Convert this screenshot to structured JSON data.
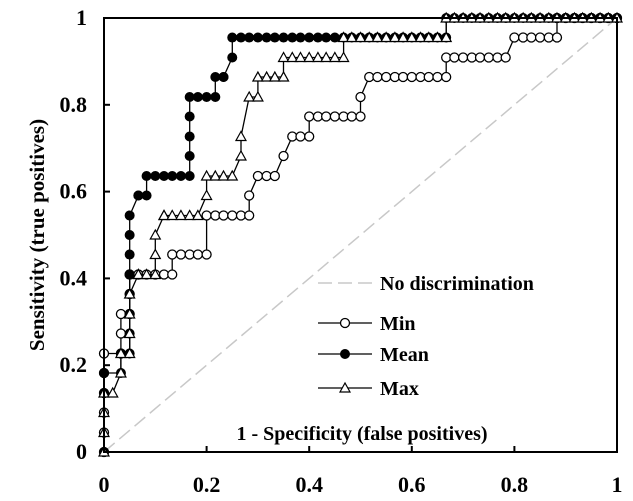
{
  "chart_data": {
    "type": "line",
    "title": "",
    "xlabel": "1 - Specificity (false positives)",
    "ylabel": "Sensitivity (true positives)",
    "xlim": [
      0,
      1
    ],
    "ylim": [
      0,
      1
    ],
    "x_ticks": [
      "0",
      "0.2",
      "0.4",
      "0.6",
      "0.8",
      "1"
    ],
    "y_ticks": [
      "0",
      "0.2",
      "0.4",
      "0.6",
      "0.8",
      "1"
    ],
    "grid": false,
    "legend_position": "bottom-right",
    "reference_line": {
      "name": "No discrimination",
      "x": [
        0,
        1
      ],
      "y": [
        0,
        1
      ],
      "color": "#c8c8c8",
      "dash": "dashed"
    },
    "series": [
      {
        "name": "Min",
        "marker": "circle-open",
        "color": "#000000",
        "x": [
          0,
          0,
          0,
          0,
          0,
          0,
          0.033,
          0.033,
          0.033,
          0.05,
          0.05,
          0.05,
          0.05,
          0.067,
          0.067,
          0.083,
          0.1,
          0.117,
          0.133,
          0.133,
          0.15,
          0.167,
          0.183,
          0.2,
          0.2,
          0.217,
          0.233,
          0.25,
          0.267,
          0.283,
          0.283,
          0.3,
          0.317,
          0.333,
          0.35,
          0.367,
          0.383,
          0.4,
          0.4,
          0.417,
          0.433,
          0.45,
          0.467,
          0.483,
          0.5,
          0.5,
          0.517,
          0.533,
          0.55,
          0.567,
          0.583,
          0.6,
          0.617,
          0.633,
          0.65,
          0.667,
          0.667,
          0.683,
          0.7,
          0.717,
          0.733,
          0.75,
          0.767,
          0.783,
          0.8,
          0.817,
          0.833,
          0.85,
          0.867,
          0.883,
          0.883,
          0.9,
          0.917,
          0.933,
          0.95,
          0.967,
          0.983,
          1
        ],
        "y": [
          0,
          0.045,
          0.091,
          0.136,
          0.182,
          0.227,
          0.227,
          0.273,
          0.318,
          0.318,
          0.364,
          0.409,
          0.409,
          0.409,
          0.409,
          0.409,
          0.409,
          0.409,
          0.409,
          0.455,
          0.455,
          0.455,
          0.455,
          0.455,
          0.545,
          0.545,
          0.545,
          0.545,
          0.545,
          0.545,
          0.591,
          0.636,
          0.636,
          0.636,
          0.682,
          0.727,
          0.727,
          0.727,
          0.773,
          0.773,
          0.773,
          0.773,
          0.773,
          0.773,
          0.773,
          0.818,
          0.864,
          0.864,
          0.864,
          0.864,
          0.864,
          0.864,
          0.864,
          0.864,
          0.864,
          0.864,
          0.909,
          0.909,
          0.909,
          0.909,
          0.909,
          0.909,
          0.909,
          0.909,
          0.955,
          0.955,
          0.955,
          0.955,
          0.955,
          0.955,
          1,
          1,
          1,
          1,
          1,
          1,
          1,
          1
        ]
      },
      {
        "name": "Mean",
        "marker": "circle-filled",
        "color": "#000000",
        "x": [
          0,
          0,
          0,
          0.033,
          0.033,
          0.05,
          0.05,
          0.05,
          0.05,
          0.05,
          0.05,
          0.05,
          0.05,
          0.067,
          0.067,
          0.083,
          0.083,
          0.1,
          0.117,
          0.133,
          0.15,
          0.167,
          0.167,
          0.167,
          0.167,
          0.167,
          0.183,
          0.2,
          0.217,
          0.217,
          0.233,
          0.233,
          0.25,
          0.25,
          0.267,
          0.283,
          0.3,
          0.317,
          0.333,
          0.35,
          0.367,
          0.383,
          0.4,
          0.417,
          0.433,
          0.45,
          0.467,
          0.483,
          0.5,
          0.517,
          0.533,
          0.55,
          0.567,
          0.583,
          0.6,
          0.617,
          0.633,
          0.65,
          0.667,
          0.667,
          0.683,
          0.7,
          0.717,
          0.733,
          0.75,
          0.767,
          0.783,
          0.8,
          0.817,
          0.833,
          0.85,
          0.867,
          0.883,
          0.9,
          0.917,
          0.933,
          0.95,
          0.967,
          0.983,
          1
        ],
        "y": [
          0,
          0.136,
          0.182,
          0.182,
          0.227,
          0.227,
          0.273,
          0.318,
          0.364,
          0.409,
          0.455,
          0.5,
          0.545,
          0.591,
          0.591,
          0.591,
          0.636,
          0.636,
          0.636,
          0.636,
          0.636,
          0.636,
          0.682,
          0.727,
          0.773,
          0.818,
          0.818,
          0.818,
          0.818,
          0.864,
          0.864,
          0.864,
          0.909,
          0.955,
          0.955,
          0.955,
          0.955,
          0.955,
          0.955,
          0.955,
          0.955,
          0.955,
          0.955,
          0.955,
          0.955,
          0.955,
          0.955,
          0.955,
          0.955,
          0.955,
          0.955,
          0.955,
          0.955,
          0.955,
          0.955,
          0.955,
          0.955,
          0.955,
          0.955,
          1,
          1,
          1,
          1,
          1,
          1,
          1,
          1,
          1,
          1,
          1,
          1,
          1,
          1,
          1,
          1,
          1,
          1,
          1,
          1,
          1
        ]
      },
      {
        "name": "Max",
        "marker": "triangle-open",
        "color": "#000000",
        "x": [
          0,
          0,
          0,
          0,
          0.017,
          0.033,
          0.033,
          0.05,
          0.05,
          0.05,
          0.05,
          0.067,
          0.067,
          0.083,
          0.1,
          0.1,
          0.1,
          0.117,
          0.117,
          0.133,
          0.15,
          0.167,
          0.183,
          0.2,
          0.2,
          0.217,
          0.233,
          0.25,
          0.267,
          0.267,
          0.283,
          0.3,
          0.3,
          0.317,
          0.333,
          0.35,
          0.35,
          0.367,
          0.383,
          0.4,
          0.417,
          0.433,
          0.45,
          0.467,
          0.467,
          0.483,
          0.5,
          0.517,
          0.533,
          0.55,
          0.567,
          0.583,
          0.6,
          0.617,
          0.633,
          0.65,
          0.667,
          0.667,
          0.683,
          0.7,
          0.717,
          0.733,
          0.75,
          0.767,
          0.783,
          0.8,
          0.817,
          0.833,
          0.85,
          0.867,
          0.883,
          0.9,
          0.917,
          0.933,
          0.95,
          0.967,
          0.983,
          1
        ],
        "y": [
          0,
          0.045,
          0.091,
          0.136,
          0.136,
          0.182,
          0.227,
          0.227,
          0.273,
          0.318,
          0.364,
          0.409,
          0.409,
          0.409,
          0.409,
          0.455,
          0.5,
          0.545,
          0.545,
          0.545,
          0.545,
          0.545,
          0.545,
          0.591,
          0.636,
          0.636,
          0.636,
          0.636,
          0.682,
          0.727,
          0.818,
          0.818,
          0.864,
          0.864,
          0.864,
          0.864,
          0.909,
          0.909,
          0.909,
          0.909,
          0.909,
          0.909,
          0.909,
          0.909,
          0.955,
          0.955,
          0.955,
          0.955,
          0.955,
          0.955,
          0.955,
          0.955,
          0.955,
          0.955,
          0.955,
          0.955,
          0.955,
          1,
          1,
          1,
          1,
          1,
          1,
          1,
          1,
          1,
          1,
          1,
          1,
          1,
          1,
          1,
          1,
          1,
          1,
          1,
          1,
          1
        ]
      }
    ]
  }
}
